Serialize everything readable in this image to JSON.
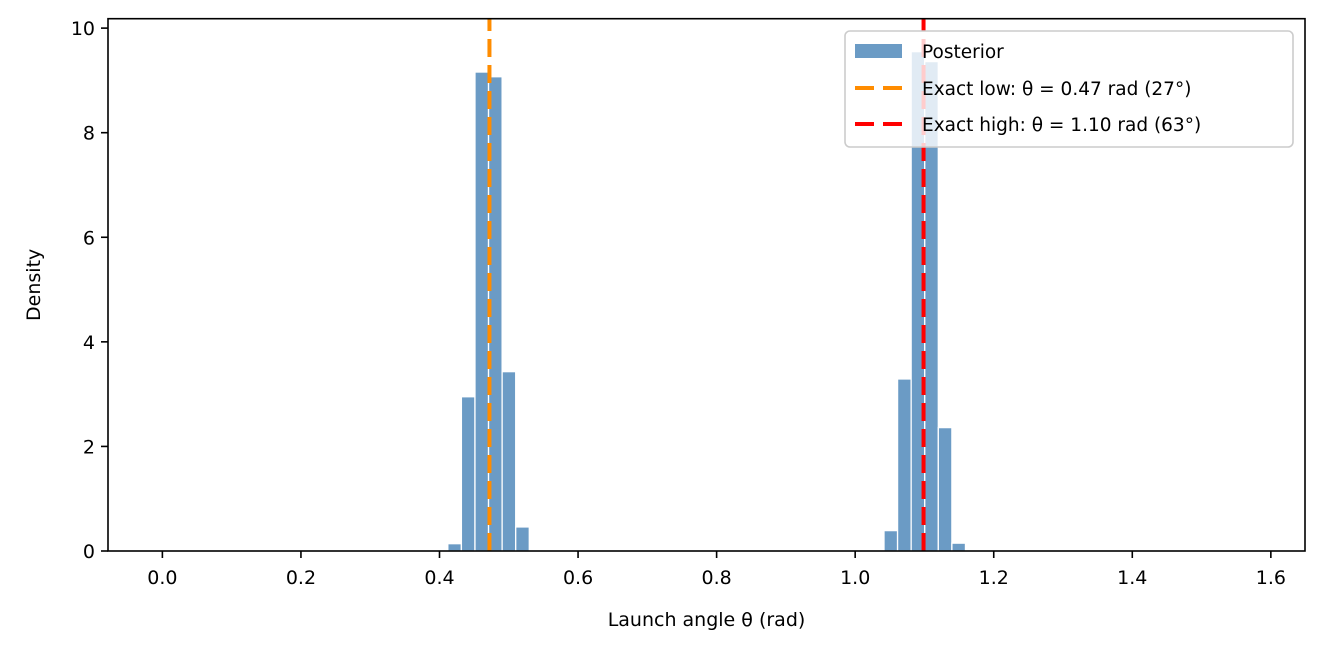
{
  "chart_data": {
    "type": "bar",
    "subtype": "histogram",
    "title": "",
    "xlabel": "Launch angle θ (rad)",
    "ylabel": "Density",
    "xlim": [
      -0.0785,
      1.6493
    ],
    "ylim": [
      0,
      10.18
    ],
    "grid": false,
    "xticks": [
      0.0,
      0.2,
      0.4,
      0.6,
      0.8,
      1.0,
      1.2,
      1.4,
      1.6
    ],
    "xtick_labels": [
      "0.0",
      "0.2",
      "0.4",
      "0.6",
      "0.8",
      "1.0",
      "1.2",
      "1.4",
      "1.6"
    ],
    "yticks": [
      0,
      2,
      4,
      6,
      8,
      10
    ],
    "ytick_labels": [
      "0",
      "2",
      "4",
      "6",
      "8",
      "10"
    ],
    "bin_width": 0.0196,
    "series": [
      {
        "name": "Posterior",
        "color": "#6b9bc5",
        "bins": [
          {
            "x0": 0.412,
            "value": 0.14
          },
          {
            "x0": 0.4316,
            "value": 2.95
          },
          {
            "x0": 0.4512,
            "value": 9.16
          },
          {
            "x0": 0.4708,
            "value": 9.07
          },
          {
            "x0": 0.4904,
            "value": 3.43
          },
          {
            "x0": 0.51,
            "value": 0.46
          },
          {
            "x0": 1.0416,
            "value": 0.39
          },
          {
            "x0": 1.0612,
            "value": 3.29
          },
          {
            "x0": 1.0808,
            "value": 9.55
          },
          {
            "x0": 1.1004,
            "value": 9.36
          },
          {
            "x0": 1.12,
            "value": 2.36
          },
          {
            "x0": 1.1396,
            "value": 0.15
          }
        ]
      }
    ],
    "vlines": [
      {
        "name": "Exact low: θ = 0.47 rad (27°)",
        "x": 0.4721,
        "color": "#ff8c00",
        "style": "dashed"
      },
      {
        "name": "Exact high: θ = 1.10 rad (63°)",
        "x": 1.0987,
        "color": "#ff0000",
        "style": "dashed"
      }
    ],
    "legend": {
      "placement": "top-right",
      "entries": [
        {
          "label": "Posterior",
          "kind": "patch",
          "color": "#6b9bc5"
        },
        {
          "label": "Exact low: θ = 0.47 rad (27°)",
          "kind": "dashed-line",
          "color": "#ff8c00"
        },
        {
          "label": "Exact high: θ = 1.10 rad (63°)",
          "kind": "dashed-line",
          "color": "#ff0000"
        }
      ]
    }
  }
}
